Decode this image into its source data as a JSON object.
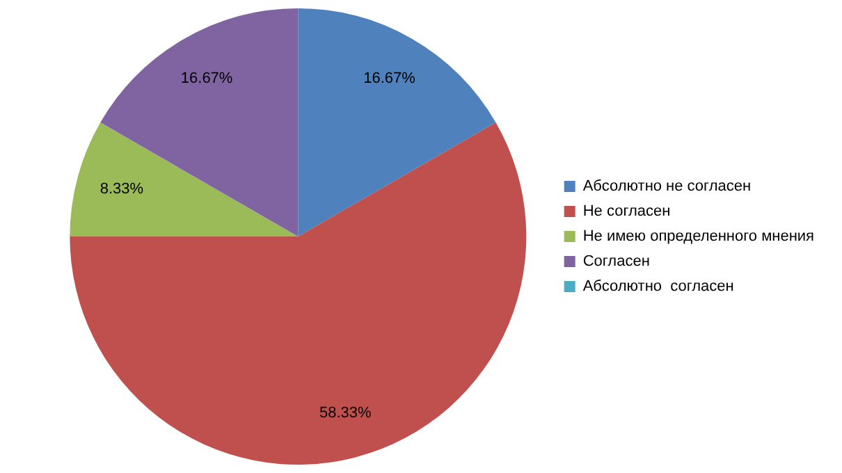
{
  "chart_data": {
    "type": "pie",
    "categories": [
      "Абсолютно не согласен",
      "Не согласен",
      "Не имею определенного мнения",
      "Согласен",
      "Абсолютно  согласен"
    ],
    "values": [
      16.67,
      58.33,
      8.33,
      16.67,
      0
    ],
    "colors": [
      "#4f81bd",
      "#c0504d",
      "#9bbb59",
      "#8064a2",
      "#4bacc6"
    ],
    "value_labels": [
      "16.67%",
      "58.33%",
      "8.33%",
      "16.67%",
      null
    ],
    "legend": "right"
  }
}
